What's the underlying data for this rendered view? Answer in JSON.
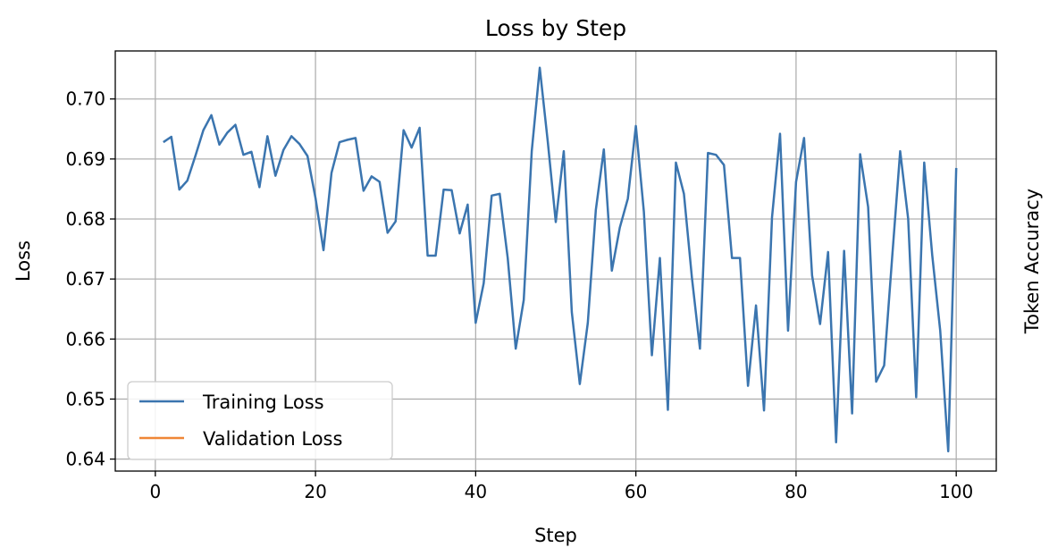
{
  "chart_data": {
    "type": "line",
    "title": "Loss by Step",
    "xlabel": "Step",
    "ylabel": "Loss",
    "y2label": "Token Accuracy",
    "xlim": [
      -5,
      105
    ],
    "ylim": [
      0.638,
      0.708
    ],
    "xticks": [
      0,
      20,
      40,
      60,
      80,
      100
    ],
    "xtick_labels": [
      "0",
      "20",
      "40",
      "60",
      "80",
      "100"
    ],
    "yticks": [
      0.64,
      0.65,
      0.66,
      0.67,
      0.68,
      0.69,
      0.7
    ],
    "ytick_labels": [
      "0.64",
      "0.65",
      "0.66",
      "0.67",
      "0.68",
      "0.69",
      "0.70"
    ],
    "grid": true,
    "legend_position": "lower-left",
    "series": [
      {
        "name": "Training Loss",
        "color": "#3b75af",
        "x": [
          1,
          2,
          3,
          4,
          5,
          6,
          7,
          8,
          9,
          10,
          11,
          12,
          13,
          14,
          15,
          16,
          17,
          18,
          19,
          20,
          21,
          22,
          23,
          24,
          25,
          26,
          27,
          28,
          29,
          30,
          31,
          32,
          33,
          34,
          35,
          36,
          37,
          38,
          39,
          40,
          41,
          42,
          43,
          44,
          45,
          46,
          47,
          48,
          49,
          50,
          51,
          52,
          53,
          54,
          55,
          56,
          57,
          58,
          59,
          60,
          61,
          62,
          63,
          64,
          65,
          66,
          67,
          68,
          69,
          70,
          71,
          72,
          73,
          74,
          75,
          76,
          77,
          78,
          79,
          80,
          81,
          82,
          83,
          84,
          85,
          86,
          87,
          88,
          89,
          90,
          91,
          92,
          93,
          94,
          95,
          96,
          97,
          98,
          99,
          100
        ],
        "values": [
          0.6928,
          0.6937,
          0.6849,
          0.6864,
          0.6905,
          0.6948,
          0.6973,
          0.6924,
          0.6944,
          0.6957,
          0.6907,
          0.6912,
          0.6853,
          0.6938,
          0.6872,
          0.6915,
          0.6938,
          0.6925,
          0.6905,
          0.6835,
          0.6748,
          0.6877,
          0.6928,
          0.6932,
          0.6935,
          0.6847,
          0.6871,
          0.6862,
          0.6777,
          0.6796,
          0.6948,
          0.6919,
          0.6952,
          0.6739,
          0.6739,
          0.6849,
          0.6848,
          0.6776,
          0.6824,
          0.6627,
          0.6693,
          0.6839,
          0.6842,
          0.6735,
          0.6584,
          0.6665,
          0.6913,
          0.7052,
          0.6929,
          0.6795,
          0.6913,
          0.6645,
          0.6525,
          0.6627,
          0.6815,
          0.6916,
          0.6714,
          0.6786,
          0.6834,
          0.6955,
          0.6812,
          0.6573,
          0.6735,
          0.6482,
          0.6894,
          0.6842,
          0.6702,
          0.6584,
          0.691,
          0.6907,
          0.689,
          0.6735,
          0.6735,
          0.6522,
          0.6656,
          0.6481,
          0.6803,
          0.6942,
          0.6614,
          0.6862,
          0.6935,
          0.6706,
          0.6625,
          0.6745,
          0.6428,
          0.6747,
          0.6476,
          0.6908,
          0.682,
          0.6529,
          0.6556,
          0.6736,
          0.6913,
          0.68,
          0.6503,
          0.6894,
          0.674,
          0.6614,
          0.6413,
          0.6885
        ]
      },
      {
        "name": "Validation Loss",
        "color": "#ef8636",
        "x": [],
        "values": []
      }
    ]
  }
}
